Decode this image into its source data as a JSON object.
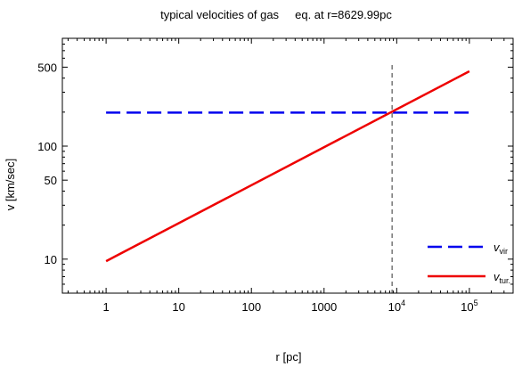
{
  "chart_data": {
    "type": "line",
    "title": "typical velocities of gas     eq. at r=8629.99pc",
    "xlabel": "r [pc]",
    "ylabel": "v [km/sec]",
    "xscale": "log",
    "yscale": "log",
    "xlim": [
      0.25,
      400000
    ],
    "ylim": [
      5,
      900
    ],
    "x_ticks": [
      {
        "value": 1,
        "label": "1"
      },
      {
        "value": 10,
        "label": "10"
      },
      {
        "value": 100,
        "label": "100"
      },
      {
        "value": 1000,
        "label": "1000"
      },
      {
        "value": 10000,
        "base": "10",
        "exp": "4"
      },
      {
        "value": 100000,
        "base": "10",
        "exp": "5"
      }
    ],
    "y_ticks": [
      {
        "value": 10,
        "label": "10"
      },
      {
        "value": 50,
        "label": "50"
      },
      {
        "value": 100,
        "label": "100"
      },
      {
        "value": 500,
        "label": "500"
      }
    ],
    "vertical_line": {
      "x": 8629.99,
      "style": "dashed",
      "color": "#333333"
    },
    "series": [
      {
        "name_main": "v",
        "name_sub": "vir",
        "color": "#0000ee",
        "style": "dashed",
        "x": [
          1,
          100000
        ],
        "y": [
          198,
          198
        ]
      },
      {
        "name_main": "v",
        "name_sub": "tur.",
        "color": "#ee0000",
        "style": "solid",
        "x": [
          1,
          100000
        ],
        "y": [
          9.6,
          460
        ]
      }
    ],
    "legend_position": "lower-right",
    "grid": false
  }
}
